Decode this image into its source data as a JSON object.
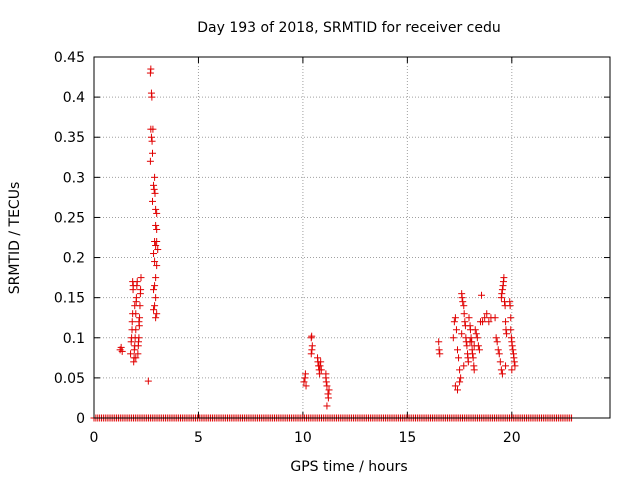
{
  "chart_data": {
    "type": "scatter",
    "title": "Day 193 of 2018, SRMTID for receiver cedu",
    "xlabel": "GPS time / hours",
    "ylabel": "SRMTID / TECUs",
    "xlim": [
      0,
      24.7
    ],
    "ylim": [
      0,
      0.45
    ],
    "xticks": [
      0,
      5,
      10,
      15,
      20
    ],
    "yticks": [
      0,
      0.05,
      0.1,
      0.15,
      0.2,
      0.25,
      0.3,
      0.35,
      0.4,
      0.45
    ],
    "ytick_labels": [
      "0",
      "0.05",
      "0.1",
      "0.15",
      "0.2",
      "0.25",
      "0.3",
      "0.35",
      "0.4",
      "0.45"
    ],
    "grid": true,
    "marker": "+",
    "series_color": "#e00000",
    "zero_line_range": [
      0.0,
      22.9
    ],
    "points": [
      [
        1.25,
        0.085
      ],
      [
        1.3,
        0.088
      ],
      [
        1.35,
        0.083
      ],
      [
        1.75,
        0.08
      ],
      [
        1.78,
        0.095
      ],
      [
        1.8,
        0.1
      ],
      [
        1.82,
        0.11
      ],
      [
        1.83,
        0.12
      ],
      [
        1.85,
        0.13
      ],
      [
        1.87,
        0.16
      ],
      [
        1.88,
        0.165
      ],
      [
        1.9,
        0.07
      ],
      [
        1.92,
        0.075
      ],
      [
        1.93,
        0.085
      ],
      [
        1.95,
        0.09
      ],
      [
        1.97,
        0.1
      ],
      [
        2.0,
        0.11
      ],
      [
        2.0,
        0.13
      ],
      [
        2.02,
        0.145
      ],
      [
        2.03,
        0.15
      ],
      [
        2.05,
        0.165
      ],
      [
        2.07,
        0.17
      ],
      [
        2.1,
        0.08
      ],
      [
        2.12,
        0.09
      ],
      [
        2.13,
        0.095
      ],
      [
        2.15,
        0.1
      ],
      [
        2.17,
        0.115
      ],
      [
        2.18,
        0.125
      ],
      [
        2.2,
        0.14
      ],
      [
        2.22,
        0.155
      ],
      [
        2.23,
        0.16
      ],
      [
        2.25,
        0.175
      ],
      [
        1.85,
        0.17
      ],
      [
        2.0,
        0.075
      ],
      [
        2.15,
        0.12
      ],
      [
        1.95,
        0.14
      ],
      [
        2.6,
        0.046
      ],
      [
        2.7,
        0.43
      ],
      [
        2.72,
        0.435
      ],
      [
        2.75,
        0.405
      ],
      [
        2.77,
        0.4
      ],
      [
        2.72,
        0.36
      ],
      [
        2.82,
        0.36
      ],
      [
        2.75,
        0.35
      ],
      [
        2.78,
        0.345
      ],
      [
        2.8,
        0.33
      ],
      [
        2.7,
        0.32
      ],
      [
        2.9,
        0.3
      ],
      [
        2.85,
        0.29
      ],
      [
        2.88,
        0.285
      ],
      [
        2.92,
        0.28
      ],
      [
        2.95,
        0.26
      ],
      [
        3.0,
        0.255
      ],
      [
        2.8,
        0.27
      ],
      [
        2.95,
        0.24
      ],
      [
        3.0,
        0.235
      ],
      [
        2.9,
        0.22
      ],
      [
        3.0,
        0.22
      ],
      [
        2.95,
        0.215
      ],
      [
        3.05,
        0.21
      ],
      [
        2.85,
        0.205
      ],
      [
        2.9,
        0.195
      ],
      [
        3.0,
        0.19
      ],
      [
        2.95,
        0.175
      ],
      [
        2.9,
        0.165
      ],
      [
        2.85,
        0.16
      ],
      [
        2.95,
        0.15
      ],
      [
        2.9,
        0.14
      ],
      [
        2.85,
        0.135
      ],
      [
        3.0,
        0.13
      ],
      [
        2.95,
        0.125
      ],
      [
        10.05,
        0.045
      ],
      [
        10.1,
        0.05
      ],
      [
        10.12,
        0.055
      ],
      [
        10.15,
        0.04
      ],
      [
        10.4,
        0.1
      ],
      [
        10.42,
        0.102
      ],
      [
        10.45,
        0.09
      ],
      [
        10.43,
        0.085
      ],
      [
        10.4,
        0.08
      ],
      [
        10.7,
        0.075
      ],
      [
        10.72,
        0.07
      ],
      [
        10.75,
        0.065
      ],
      [
        10.78,
        0.06
      ],
      [
        10.8,
        0.055
      ],
      [
        10.82,
        0.065
      ],
      [
        10.85,
        0.07
      ],
      [
        10.88,
        0.06
      ],
      [
        11.1,
        0.05
      ],
      [
        11.12,
        0.045
      ],
      [
        11.15,
        0.04
      ],
      [
        11.2,
        0.03
      ],
      [
        11.22,
        0.025
      ],
      [
        11.25,
        0.035
      ],
      [
        11.1,
        0.055
      ],
      [
        11.15,
        0.015
      ],
      [
        16.5,
        0.095
      ],
      [
        16.52,
        0.085
      ],
      [
        16.55,
        0.08
      ],
      [
        17.2,
        0.1
      ],
      [
        17.25,
        0.12
      ],
      [
        17.3,
        0.125
      ],
      [
        17.35,
        0.11
      ],
      [
        17.4,
        0.085
      ],
      [
        17.45,
        0.075
      ],
      [
        17.5,
        0.06
      ],
      [
        17.55,
        0.05
      ],
      [
        17.3,
        0.04
      ],
      [
        17.4,
        0.035
      ],
      [
        17.5,
        0.045
      ],
      [
        17.6,
        0.155
      ],
      [
        17.62,
        0.15
      ],
      [
        17.65,
        0.145
      ],
      [
        17.7,
        0.14
      ],
      [
        17.72,
        0.13
      ],
      [
        17.75,
        0.12
      ],
      [
        17.78,
        0.115
      ],
      [
        17.8,
        0.1
      ],
      [
        17.82,
        0.095
      ],
      [
        17.85,
        0.09
      ],
      [
        17.88,
        0.08
      ],
      [
        17.9,
        0.075
      ],
      [
        17.92,
        0.07
      ],
      [
        17.95,
        0.125
      ],
      [
        18.0,
        0.115
      ],
      [
        18.02,
        0.11
      ],
      [
        18.05,
        0.1
      ],
      [
        18.08,
        0.095
      ],
      [
        18.1,
        0.085
      ],
      [
        18.12,
        0.08
      ],
      [
        18.15,
        0.075
      ],
      [
        18.18,
        0.065
      ],
      [
        18.2,
        0.06
      ],
      [
        18.25,
        0.11
      ],
      [
        18.3,
        0.105
      ],
      [
        18.35,
        0.1
      ],
      [
        18.4,
        0.09
      ],
      [
        18.45,
        0.085
      ],
      [
        18.5,
        0.12
      ],
      [
        18.55,
        0.153
      ],
      [
        18.6,
        0.12
      ],
      [
        18.7,
        0.125
      ],
      [
        18.8,
        0.13
      ],
      [
        18.9,
        0.12
      ],
      [
        19.0,
        0.125
      ],
      [
        17.6,
        0.105
      ],
      [
        17.7,
        0.065
      ],
      [
        18.0,
        0.095
      ],
      [
        18.2,
        0.09
      ],
      [
        19.2,
        0.125
      ],
      [
        19.25,
        0.1
      ],
      [
        19.3,
        0.095
      ],
      [
        19.35,
        0.085
      ],
      [
        19.4,
        0.08
      ],
      [
        19.45,
        0.07
      ],
      [
        19.5,
        0.06
      ],
      [
        19.55,
        0.055
      ],
      [
        19.5,
        0.15
      ],
      [
        19.52,
        0.155
      ],
      [
        19.55,
        0.16
      ],
      [
        19.58,
        0.165
      ],
      [
        19.6,
        0.17
      ],
      [
        19.62,
        0.175
      ],
      [
        19.65,
        0.145
      ],
      [
        19.68,
        0.14
      ],
      [
        19.7,
        0.12
      ],
      [
        19.72,
        0.11
      ],
      [
        19.75,
        0.105
      ],
      [
        19.9,
        0.145
      ],
      [
        19.92,
        0.14
      ],
      [
        19.95,
        0.125
      ],
      [
        19.98,
        0.1
      ],
      [
        20.0,
        0.095
      ],
      [
        20.02,
        0.09
      ],
      [
        20.05,
        0.085
      ],
      [
        20.08,
        0.08
      ],
      [
        20.1,
        0.075
      ],
      [
        20.12,
        0.07
      ],
      [
        20.15,
        0.065
      ],
      [
        19.95,
        0.11
      ],
      [
        20.0,
        0.06
      ],
      [
        19.7,
        0.065
      ]
    ]
  }
}
